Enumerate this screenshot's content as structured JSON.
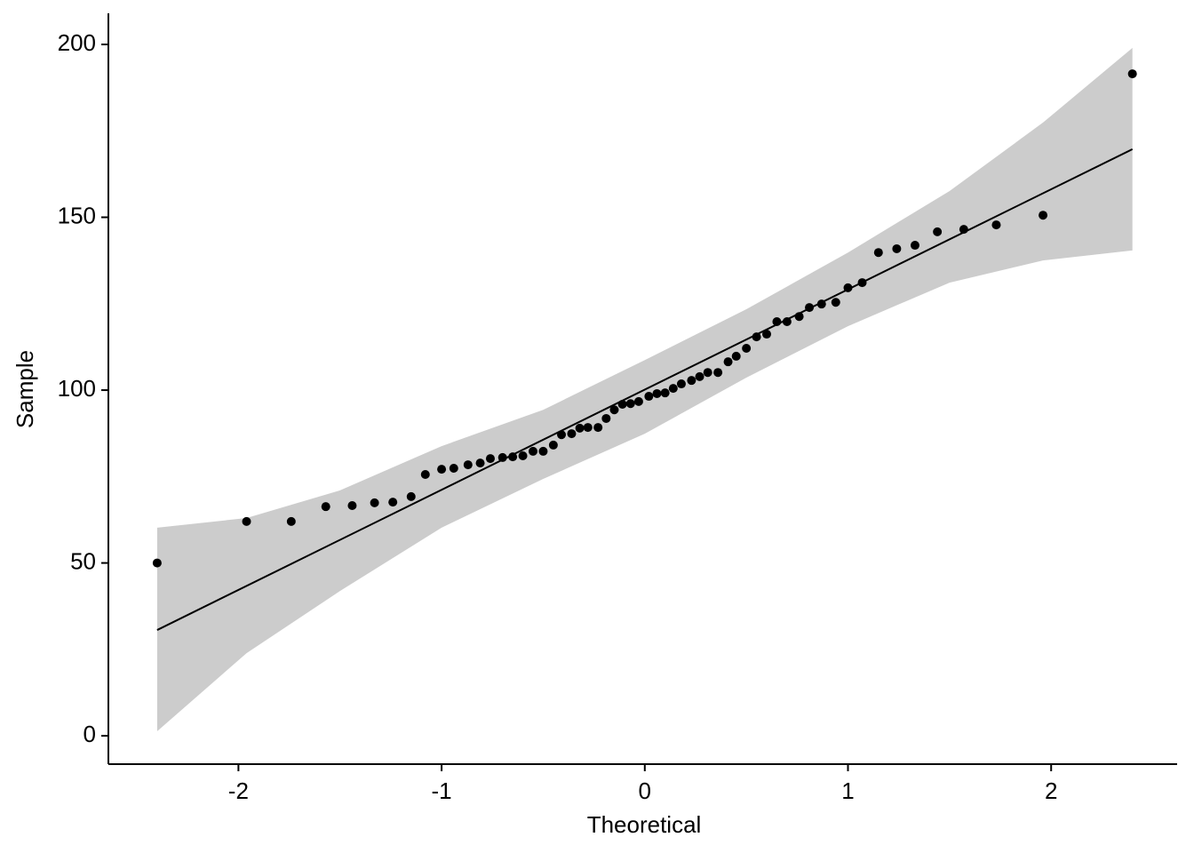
{
  "chart_data": {
    "type": "scatter",
    "x_label": "Theoretical",
    "y_label": "Sample",
    "x": [
      -2.4,
      -1.96,
      -1.74,
      -1.57,
      -1.44,
      -1.33,
      -1.24,
      -1.15,
      -1.08,
      -1.0,
      -0.94,
      -0.87,
      -0.81,
      -0.76,
      -0.7,
      -0.65,
      -0.6,
      -0.55,
      -0.5,
      -0.45,
      -0.41,
      -0.36,
      -0.32,
      -0.28,
      -0.23,
      -0.19,
      -0.15,
      -0.11,
      -0.07,
      -0.03,
      0.02,
      0.06,
      0.1,
      0.14,
      0.18,
      0.23,
      0.27,
      0.31,
      0.36,
      0.41,
      0.45,
      0.5,
      0.55,
      0.6,
      0.65,
      0.7,
      0.76,
      0.81,
      0.87,
      0.94,
      1.0,
      1.07,
      1.15,
      1.24,
      1.33,
      1.44,
      1.57,
      1.73,
      1.96,
      2.4
    ],
    "values": [
      50,
      62,
      62,
      66.3,
      66.6,
      67.4,
      67.6,
      69.2,
      75.6,
      77.1,
      77.4,
      78.4,
      78.9,
      80.2,
      80.5,
      80.7,
      81.0,
      82.3,
      82.3,
      84.1,
      87.1,
      87.4,
      89.0,
      89.2,
      89.2,
      91.8,
      94.3,
      95.9,
      96.1,
      96.7,
      98.2,
      99.0,
      99.2,
      100.5,
      101.8,
      102.8,
      103.9,
      105.1,
      105.1,
      108.2,
      109.8,
      112.1,
      115.4,
      116.2,
      119.8,
      119.8,
      121.3,
      123.9,
      124.9,
      125.4,
      129.6,
      131.1,
      139.8,
      140.9,
      141.9,
      145.8,
      146.5,
      147.8,
      150.6,
      191.5
    ],
    "color": "#000000",
    "fit_line": {
      "x": [
        -2.4,
        2.4
      ],
      "y": [
        30.6,
        169.7
      ],
      "color": "#000000"
    },
    "band": {
      "x": [
        -2.4,
        -1.96,
        -1.5,
        -1.0,
        -0.5,
        0,
        0.5,
        1.0,
        1.5,
        1.96,
        2.4
      ],
      "lower": [
        1.3,
        23.9,
        41.9,
        60.2,
        74.3,
        87.4,
        103.6,
        118.5,
        131.1,
        137.5,
        140.4
      ],
      "upper": [
        60.2,
        63,
        71,
        83.8,
        94.3,
        108.7,
        123.4,
        139.8,
        157.6,
        177.4,
        199
      ],
      "color": "#cccccc"
    },
    "xlim": [
      -2.64,
      2.62
    ],
    "ylim": [
      -8.2,
      209
    ],
    "xticks": [
      -2,
      -1,
      0,
      1,
      2
    ],
    "yticks": [
      0,
      50,
      100,
      150,
      200
    ],
    "grid": false
  }
}
